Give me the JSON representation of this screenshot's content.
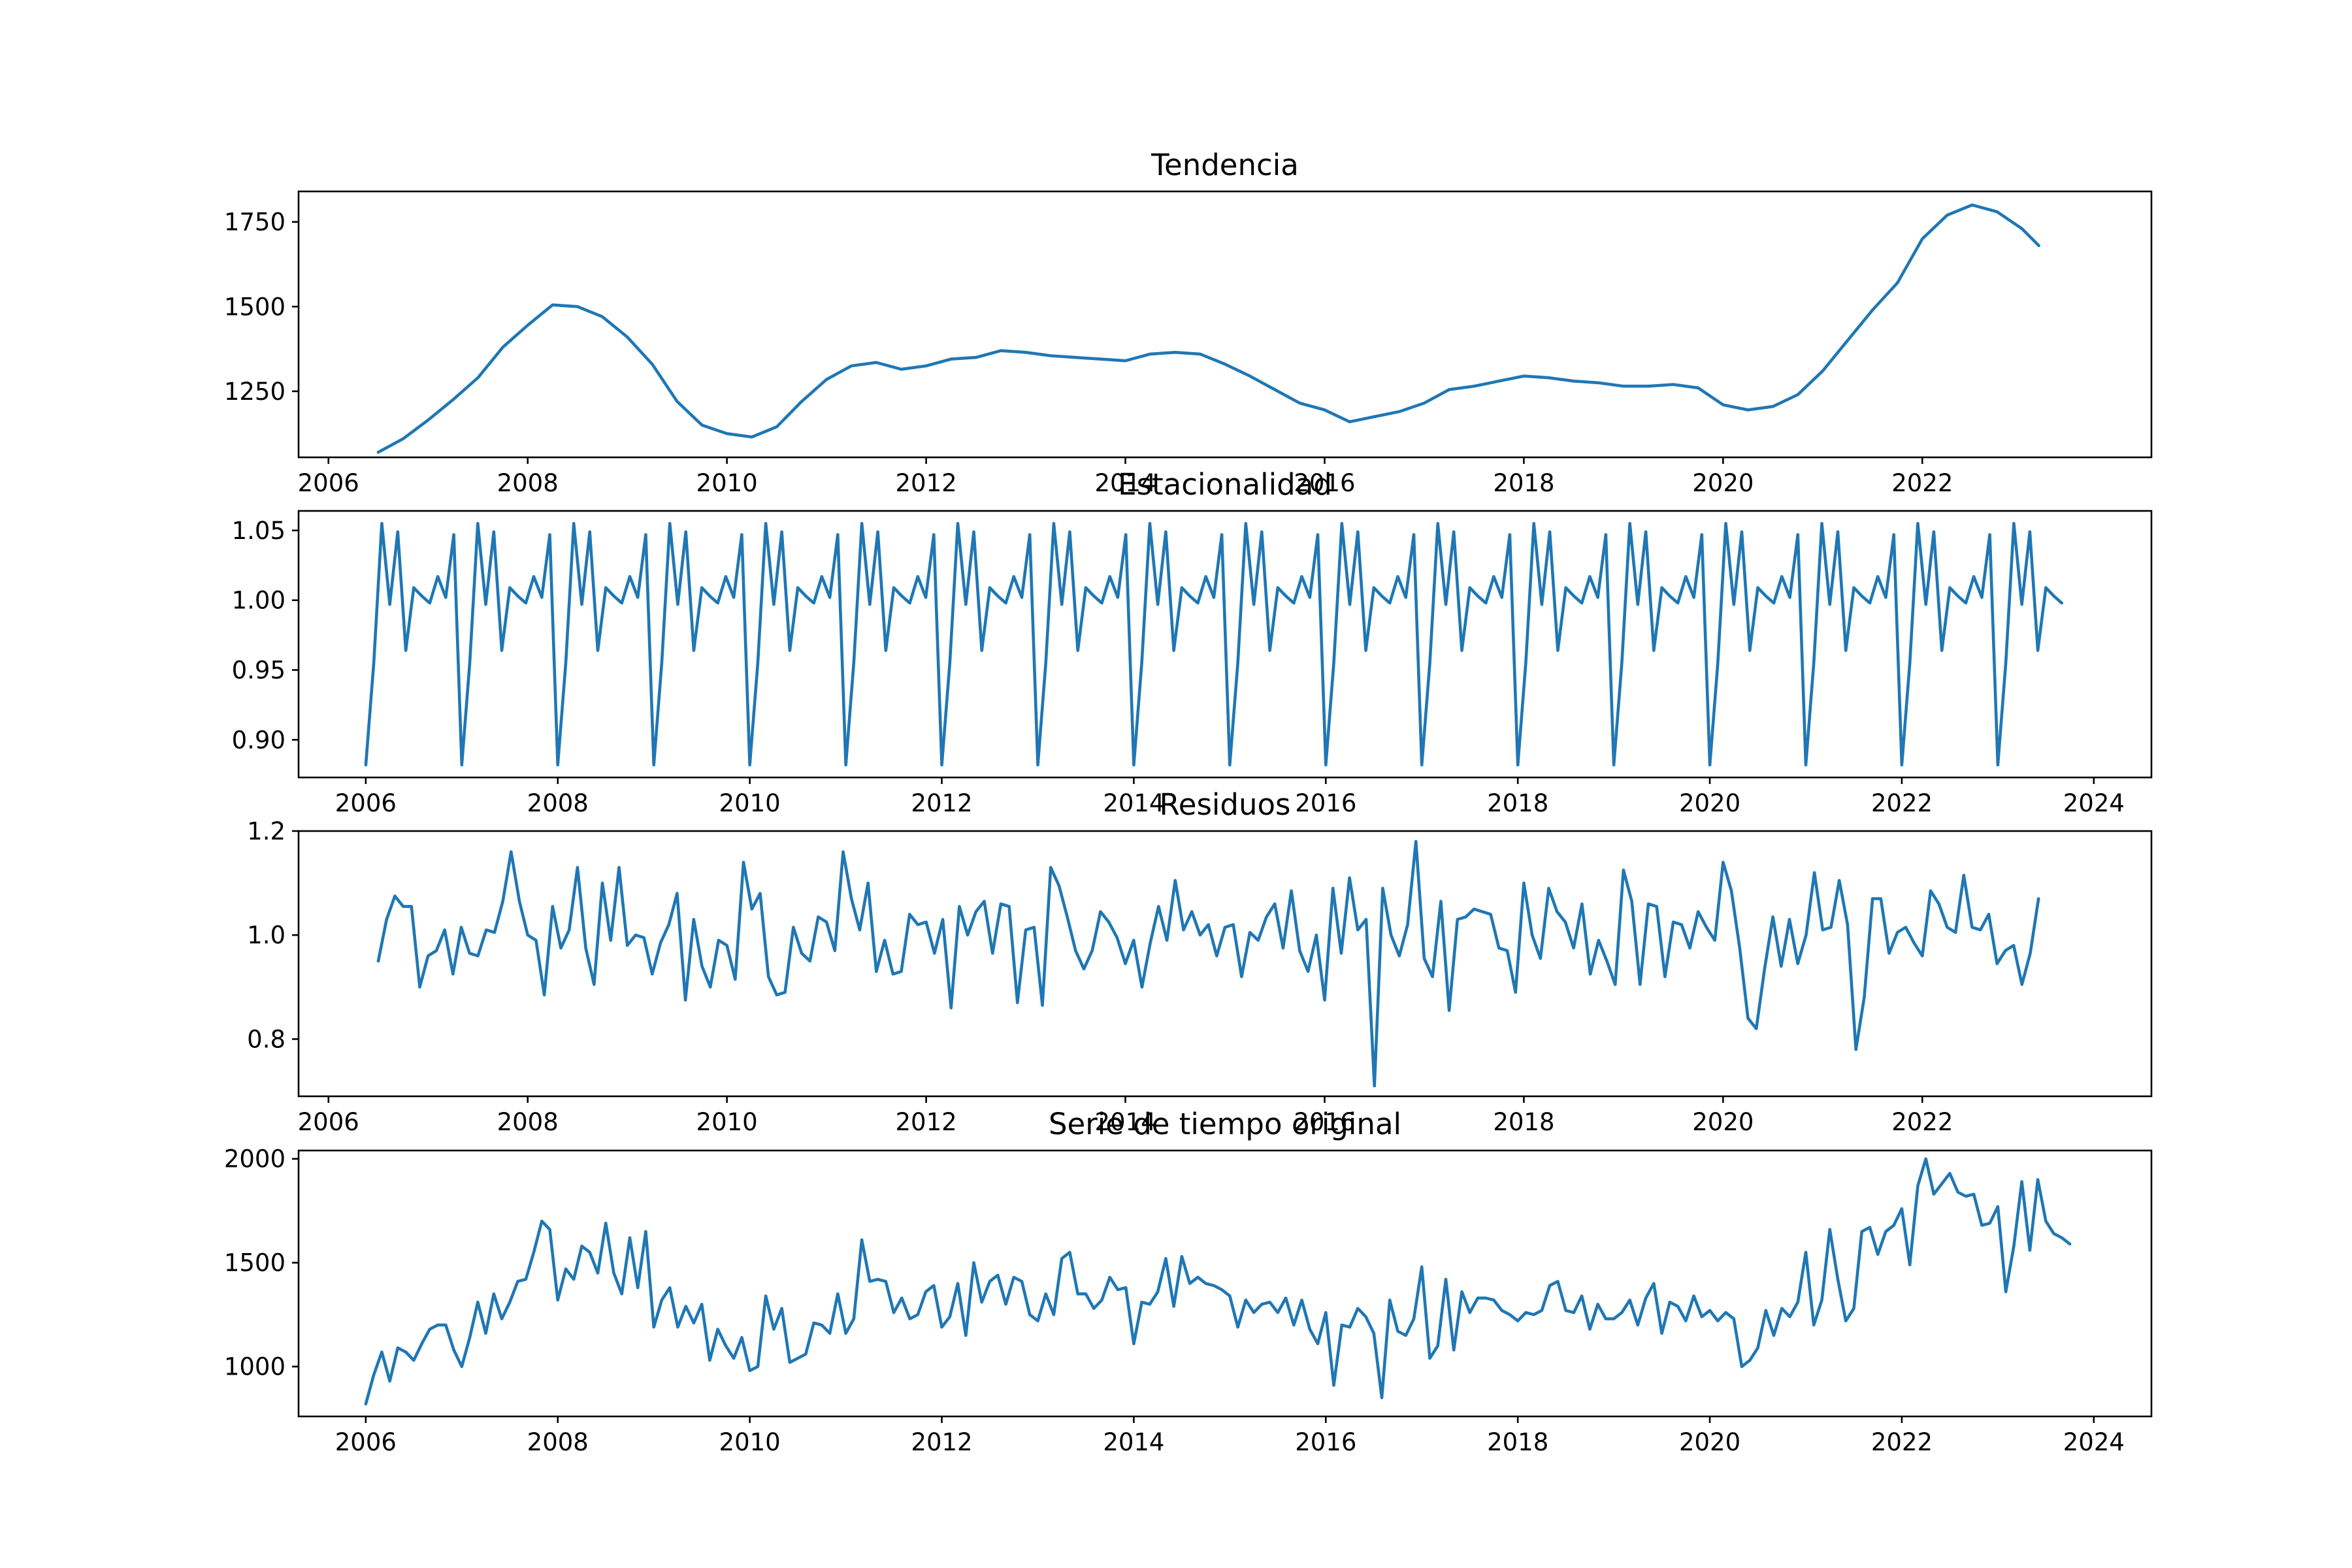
{
  "chart_data": [
    {
      "type": "line",
      "title": "Tendencia",
      "xlabel": "",
      "ylabel": "",
      "xlim": [
        2005.7,
        2024.3
      ],
      "ylim": [
        1055,
        1840
      ],
      "xticks": [
        2006,
        2008,
        2010,
        2012,
        2014,
        2016,
        2018,
        2020,
        2022
      ],
      "xtick_labels": [
        "2006",
        "2008",
        "2010",
        "2012",
        "2014",
        "2016",
        "2018",
        "2020",
        "2022"
      ],
      "yticks": [
        1250,
        1500,
        1750
      ],
      "ytick_labels": [
        "1250",
        "1500",
        "1750"
      ],
      "grid": false,
      "color": "#1f77b4",
      "x": [
        2006.5,
        2006.75,
        2007.0,
        2007.25,
        2007.5,
        2007.75,
        2008.0,
        2008.25,
        2008.5,
        2008.75,
        2009.0,
        2009.25,
        2009.5,
        2009.75,
        2010.0,
        2010.25,
        2010.5,
        2010.75,
        2011.0,
        2011.25,
        2011.5,
        2011.75,
        2012.0,
        2012.25,
        2012.5,
        2012.75,
        2013.0,
        2013.25,
        2013.5,
        2013.75,
        2014.0,
        2014.25,
        2014.5,
        2014.75,
        2015.0,
        2015.25,
        2015.5,
        2015.75,
        2016.0,
        2016.25,
        2016.5,
        2016.75,
        2017.0,
        2017.25,
        2017.5,
        2017.75,
        2018.0,
        2018.25,
        2018.5,
        2018.75,
        2019.0,
        2019.25,
        2019.5,
        2019.75,
        2020.0,
        2020.25,
        2020.5,
        2020.75,
        2021.0,
        2021.25,
        2021.5,
        2021.75,
        2022.0,
        2022.25,
        2022.5,
        2022.75,
        2023.0,
        2023.17
      ],
      "values": [
        1070,
        1110,
        1165,
        1225,
        1290,
        1380,
        1445,
        1505,
        1500,
        1470,
        1410,
        1330,
        1220,
        1150,
        1125,
        1115,
        1145,
        1220,
        1285,
        1325,
        1335,
        1315,
        1325,
        1345,
        1350,
        1370,
        1365,
        1355,
        1350,
        1345,
        1340,
        1360,
        1365,
        1360,
        1330,
        1295,
        1255,
        1215,
        1195,
        1160,
        1175,
        1190,
        1215,
        1255,
        1265,
        1280,
        1295,
        1290,
        1280,
        1275,
        1265,
        1265,
        1270,
        1260,
        1210,
        1195,
        1205,
        1240,
        1310,
        1400,
        1490,
        1570,
        1700,
        1770,
        1800,
        1780,
        1730,
        1680
      ]
    },
    {
      "type": "line",
      "title": "Estacionalidad",
      "xlabel": "",
      "ylabel": "",
      "xlim": [
        2005.3,
        2024.6
      ],
      "ylim": [
        0.873,
        1.064
      ],
      "xticks": [
        2006,
        2008,
        2010,
        2012,
        2014,
        2016,
        2018,
        2020,
        2022,
        2024
      ],
      "xtick_labels": [
        "2006",
        "2008",
        "2010",
        "2012",
        "2014",
        "2016",
        "2018",
        "2020",
        "2022",
        "2024"
      ],
      "yticks": [
        0.9,
        0.95,
        1.0,
        1.05
      ],
      "ytick_labels": [
        "0.90",
        "0.95",
        "1.00",
        "1.05"
      ],
      "grid": false,
      "color": "#1f77b4",
      "x_start": 2006.0,
      "x_step_years": 0.083333,
      "monthly_pattern": [
        0.882,
        0.955,
        1.055,
        0.997,
        1.049,
        0.964,
        1.009,
        1.003,
        0.998,
        1.017,
        1.002,
        1.047
      ],
      "values_count": 213
    },
    {
      "type": "line",
      "title": "Residuos",
      "xlabel": "",
      "ylabel": "",
      "xlim": [
        2005.7,
        2024.3
      ],
      "ylim": [
        0.69,
        1.2
      ],
      "xticks": [
        2006,
        2008,
        2010,
        2012,
        2014,
        2016,
        2018,
        2020,
        2022
      ],
      "xtick_labels": [
        "2006",
        "2008",
        "2010",
        "2012",
        "2014",
        "2016",
        "2018",
        "2020",
        "2022"
      ],
      "yticks": [
        0.8,
        1.0,
        1.2
      ],
      "ytick_labels": [
        "0.8",
        "1.0",
        "1.2"
      ],
      "grid": false,
      "color": "#1f77b4",
      "x_start": 2006.5,
      "x_step_years": 0.083333,
      "values": [
        0.95,
        1.03,
        1.075,
        1.055,
        1.055,
        0.9,
        0.96,
        0.97,
        1.01,
        0.925,
        1.015,
        0.965,
        0.96,
        1.01,
        1.005,
        1.065,
        1.16,
        1.065,
        1.0,
        0.99,
        0.885,
        1.055,
        0.975,
        1.01,
        1.13,
        0.975,
        0.905,
        1.1,
        0.99,
        1.13,
        0.98,
        1.0,
        0.995,
        0.925,
        0.985,
        1.02,
        1.08,
        0.875,
        1.03,
        0.94,
        0.9,
        0.99,
        0.98,
        0.915,
        1.14,
        1.05,
        1.08,
        0.92,
        0.885,
        0.89,
        1.015,
        0.965,
        0.95,
        1.035,
        1.025,
        0.97,
        1.16,
        1.07,
        1.01,
        1.1,
        0.93,
        0.99,
        0.925,
        0.93,
        1.04,
        1.02,
        1.025,
        0.965,
        1.03,
        0.86,
        1.055,
        1.0,
        1.045,
        1.065,
        0.965,
        1.06,
        1.055,
        0.87,
        1.01,
        1.015,
        0.865,
        1.13,
        1.095,
        1.035,
        0.97,
        0.935,
        0.97,
        1.045,
        1.025,
        0.995,
        0.945,
        0.99,
        0.9,
        0.985,
        1.055,
        0.99,
        1.105,
        1.01,
        1.045,
        1.0,
        1.02,
        0.96,
        1.015,
        1.02,
        0.92,
        1.005,
        0.99,
        1.035,
        1.06,
        0.975,
        1.085,
        0.97,
        0.93,
        1.0,
        0.875,
        1.09,
        0.965,
        1.11,
        1.01,
        1.03,
        0.71,
        1.09,
        1.0,
        0.96,
        1.02,
        1.18,
        0.955,
        0.92,
        1.065,
        0.855,
        1.03,
        1.035,
        1.05,
        1.045,
        1.04,
        0.975,
        0.97,
        0.89,
        1.1,
        1.0,
        0.955,
        1.09,
        1.045,
        1.025,
        0.975,
        1.06,
        0.925,
        0.99,
        0.95,
        0.905,
        1.125,
        1.065,
        0.905,
        1.06,
        1.055,
        0.92,
        1.025,
        1.02,
        0.975,
        1.045,
        1.015,
        0.99,
        1.14,
        1.085,
        0.975,
        0.84,
        0.82,
        0.935,
        1.035,
        0.94,
        1.03,
        0.945,
        1.0,
        1.12,
        1.01,
        1.015,
        1.105,
        1.02,
        0.78,
        0.88,
        1.07,
        1.07,
        0.965,
        1.005,
        1.015,
        0.985,
        0.96,
        1.085,
        1.06,
        1.015,
        1.005,
        1.115,
        1.015,
        1.01,
        1.04,
        0.945,
        0.97,
        0.98,
        0.905,
        0.965,
        1.07
      ]
    },
    {
      "type": "line",
      "title": "Serie de tiempo original",
      "xlabel": "",
      "ylabel": "",
      "xlim": [
        2005.3,
        2024.6
      ],
      "ylim": [
        760,
        2040
      ],
      "xticks": [
        2006,
        2008,
        2010,
        2012,
        2014,
        2016,
        2018,
        2020,
        2022,
        2024
      ],
      "xtick_labels": [
        "2006",
        "2008",
        "2010",
        "2012",
        "2014",
        "2016",
        "2018",
        "2020",
        "2022",
        "2024"
      ],
      "yticks": [
        1000,
        1500,
        2000
      ],
      "ytick_labels": [
        "1000",
        "1500",
        "2000"
      ],
      "grid": false,
      "color": "#1f77b4",
      "x_start": 2006.0,
      "x_step_years": 0.083333,
      "values": [
        820,
        960,
        1070,
        930,
        1090,
        1070,
        1030,
        1110,
        1180,
        1200,
        1200,
        1080,
        1000,
        1140,
        1310,
        1160,
        1350,
        1230,
        1310,
        1410,
        1420,
        1550,
        1700,
        1660,
        1320,
        1470,
        1420,
        1580,
        1550,
        1450,
        1690,
        1450,
        1350,
        1620,
        1380,
        1650,
        1190,
        1320,
        1380,
        1190,
        1290,
        1210,
        1300,
        1030,
        1180,
        1100,
        1040,
        1140,
        980,
        1000,
        1340,
        1180,
        1280,
        1020,
        1040,
        1060,
        1210,
        1200,
        1160,
        1350,
        1160,
        1230,
        1610,
        1410,
        1420,
        1410,
        1260,
        1330,
        1230,
        1250,
        1360,
        1390,
        1190,
        1240,
        1400,
        1150,
        1500,
        1310,
        1410,
        1440,
        1300,
        1430,
        1410,
        1250,
        1220,
        1350,
        1250,
        1520,
        1550,
        1350,
        1350,
        1280,
        1320,
        1430,
        1370,
        1380,
        1110,
        1310,
        1300,
        1360,
        1520,
        1290,
        1530,
        1400,
        1430,
        1400,
        1390,
        1370,
        1340,
        1190,
        1320,
        1260,
        1300,
        1310,
        1260,
        1330,
        1200,
        1320,
        1180,
        1110,
        1260,
        910,
        1200,
        1190,
        1280,
        1240,
        1160,
        850,
        1320,
        1170,
        1150,
        1230,
        1480,
        1040,
        1100,
        1420,
        1080,
        1360,
        1260,
        1330,
        1330,
        1320,
        1270,
        1250,
        1220,
        1260,
        1250,
        1270,
        1390,
        1410,
        1270,
        1260,
        1340,
        1180,
        1300,
        1230,
        1230,
        1260,
        1320,
        1200,
        1330,
        1400,
        1160,
        1310,
        1290,
        1220,
        1340,
        1240,
        1270,
        1220,
        1260,
        1230,
        1000,
        1030,
        1090,
        1270,
        1150,
        1280,
        1240,
        1310,
        1550,
        1200,
        1320,
        1660,
        1420,
        1220,
        1280,
        1650,
        1670,
        1540,
        1650,
        1680,
        1760,
        1490,
        1870,
        2000,
        1830,
        1880,
        1930,
        1840,
        1820,
        1830,
        1680,
        1690,
        1770,
        1360,
        1580,
        1890,
        1560,
        1900,
        1700,
        1640,
        1620,
        1590
      ]
    }
  ]
}
